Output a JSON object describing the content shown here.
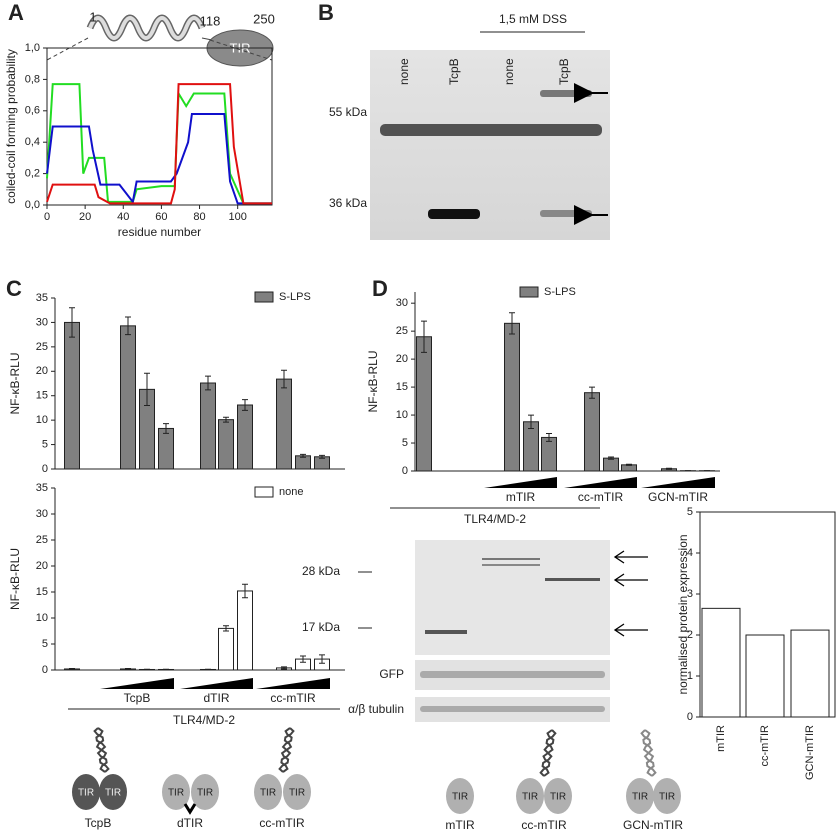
{
  "panel_labels": [
    "A",
    "B",
    "C",
    "D"
  ],
  "domain": "TIR",
  "domain_map": {
    "start": "1",
    "cc_end": "118",
    "end": "250"
  },
  "blot_b": {
    "treatment": "1,5 mM DSS",
    "lanes": [
      "none",
      "TcpB",
      "none",
      "TcpB"
    ],
    "markers": [
      "55 kDa",
      "36 kDa"
    ]
  },
  "blot_d": {
    "markers": [
      "28 kDa",
      "17 kDa"
    ],
    "strips": [
      "GFP",
      "α/β tubulin"
    ]
  },
  "diagram_c": {
    "labels": [
      "TcpB",
      "dTIR",
      "cc-mTIR"
    ]
  },
  "diagram_d": {
    "labels": [
      "mTIR",
      "cc-mTIR",
      "GCN-mTIR"
    ]
  },
  "chart_data": [
    {
      "type": "line",
      "x_label": "residue number",
      "y_label": "coiled-coil forming probability",
      "xlim": [
        0,
        118
      ],
      "ylim": [
        0,
        1.0
      ],
      "xticks": [
        0,
        20,
        40,
        60,
        80,
        100
      ],
      "yticks": [
        {
          "value": 0,
          "label": "0,0"
        },
        {
          "value": 0.2,
          "label": "0,2"
        },
        {
          "value": 0.4,
          "label": "0,4"
        },
        {
          "value": 0.6,
          "label": "0,6"
        },
        {
          "value": 0.8,
          "label": "0,8"
        },
        {
          "value": 1.0,
          "label": "1,0"
        }
      ],
      "series": [
        {
          "color": "#22dd22",
          "x": [
            0,
            3,
            17,
            19,
            22,
            30,
            32,
            45,
            47,
            60,
            67,
            69,
            73,
            77,
            93,
            96,
            103,
            118
          ],
          "values": [
            0.17,
            0.77,
            0.77,
            0.2,
            0.3,
            0.3,
            0.02,
            0.02,
            0.1,
            0.12,
            0.12,
            0.71,
            0.63,
            0.71,
            0.71,
            0.2,
            0.01,
            0.01
          ]
        },
        {
          "color": "#1010cc",
          "x": [
            0,
            3,
            22,
            24,
            28,
            38,
            45,
            47,
            65,
            68,
            74,
            76,
            93,
            96,
            100,
            118
          ],
          "values": [
            0.2,
            0.5,
            0.5,
            0.35,
            0.13,
            0.13,
            0.02,
            0.15,
            0.15,
            0.2,
            0.4,
            0.58,
            0.58,
            0.15,
            0.01,
            0.01
          ]
        },
        {
          "color": "#e01010",
          "x": [
            0,
            3,
            25,
            27,
            33,
            45,
            65,
            67,
            69,
            96,
            98,
            103,
            118
          ],
          "values": [
            0.02,
            0.13,
            0.13,
            0.05,
            0.01,
            0.01,
            0.01,
            0.1,
            0.77,
            0.77,
            0.37,
            0.01,
            0.01
          ]
        }
      ]
    },
    {
      "type": "bar",
      "y_label": "NF-κB-RLU",
      "ylim": [
        0,
        35
      ],
      "yticks": [
        0,
        5,
        10,
        15,
        20,
        25,
        30,
        35
      ],
      "categories": [
        null,
        null,
        null,
        null,
        null,
        null,
        null,
        null,
        null,
        null
      ],
      "series": [
        {
          "name": "S-LPS",
          "color": "#808080",
          "values": [
            30,
            29.3,
            16.3,
            8.3,
            17.6,
            10.1,
            13.1,
            18.4,
            2.7,
            2.5
          ],
          "errors": [
            3,
            1.8,
            3.3,
            1,
            1.4,
            0.5,
            1.1,
            1.8,
            0.3,
            0.3
          ]
        }
      ]
    },
    {
      "type": "bar",
      "y_label": "NF-κB-RLU",
      "ylim": [
        0,
        35
      ],
      "yticks": [
        0,
        5,
        10,
        15,
        20,
        25,
        30,
        35
      ],
      "categories": [
        null,
        null,
        null,
        null,
        null,
        null,
        null,
        null,
        null,
        null
      ],
      "series": [
        {
          "name": "none",
          "color": "#ffffff",
          "values": [
            0.2,
            0.2,
            0.1,
            0.1,
            0.1,
            8,
            15.2,
            0.4,
            2.1,
            2.1
          ],
          "errors": [
            0.1,
            0.1,
            0.05,
            0.05,
            0.05,
            0.5,
            1.3,
            0.2,
            0.6,
            0.8
          ]
        }
      ],
      "groups": [
        "TcpB",
        "dTIR",
        "cc-mTIR"
      ],
      "baseline": "TLR4/MD-2"
    },
    {
      "type": "bar",
      "y_label": "NF-κB-RLU",
      "ylim": [
        0,
        32
      ],
      "yticks": [
        0,
        5,
        10,
        15,
        20,
        25,
        30
      ],
      "categories": [
        null,
        null,
        null,
        null,
        null,
        null,
        null,
        null,
        null,
        null
      ],
      "series": [
        {
          "name": "S-LPS",
          "color": "#808080",
          "values": [
            24,
            26.4,
            8.8,
            6,
            14,
            2.3,
            1.1,
            0.4,
            0.05,
            0.05
          ],
          "errors": [
            2.8,
            1.9,
            1.2,
            0.7,
            1,
            0.2,
            0.1,
            0.1,
            0.02,
            0.02
          ]
        }
      ],
      "groups": [
        "mTIR",
        "cc-mTIR",
        "GCN-mTIR"
      ],
      "baseline": "TLR4/MD-2"
    },
    {
      "type": "bar",
      "y_label": "normalised protein expression",
      "ylim": [
        0,
        5
      ],
      "yticks": [
        0,
        1,
        2,
        3,
        4,
        5
      ],
      "categories": [
        "mTIR",
        "cc-mTIR",
        "GCN-mTIR"
      ],
      "series": [
        {
          "color": "#ffffff",
          "values": [
            2.65,
            2.0,
            2.12
          ]
        }
      ]
    }
  ]
}
